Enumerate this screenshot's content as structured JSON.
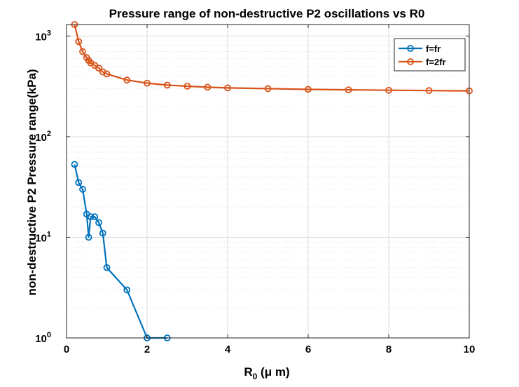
{
  "chart_data": {
    "type": "line",
    "title": "Pressure range of non-destructive P2 oscillations vs R0",
    "xlabel": {
      "main": "R",
      "sub": "0",
      "rest": " (μ m)"
    },
    "ylabel": "non-destructive P2 Pressure range(kPa)",
    "xlim": [
      0,
      10
    ],
    "ylim": [
      1,
      1300
    ],
    "yscale": "log",
    "grid": true,
    "minor_grid": true,
    "legend_position": "top-right",
    "x_ticks": [
      "0",
      "2",
      "4",
      "6",
      "8",
      "10"
    ],
    "x_tick_values": [
      0,
      2,
      4,
      6,
      8,
      10
    ],
    "y_ticks": [
      {
        "base": "10",
        "exp": "0",
        "value": 1
      },
      {
        "base": "10",
        "exp": "1",
        "value": 10
      },
      {
        "base": "10",
        "exp": "2",
        "value": 100
      },
      {
        "base": "10",
        "exp": "3",
        "value": 1000
      }
    ],
    "series": [
      {
        "name": "f=fr",
        "color": "#0072BD",
        "x": [
          0.2,
          0.3,
          0.4,
          0.5,
          0.55,
          0.6,
          0.7,
          0.8,
          0.9,
          1.0,
          1.5,
          2.0,
          2.5
        ],
        "y": [
          53,
          35,
          30,
          17,
          10,
          16,
          16,
          14,
          11,
          5,
          3,
          1,
          1
        ]
      },
      {
        "name": "f=2fr",
        "color": "#D95319",
        "x": [
          0.2,
          0.3,
          0.4,
          0.5,
          0.55,
          0.6,
          0.7,
          0.8,
          0.9,
          1.0,
          1.5,
          2.0,
          2.5,
          3.0,
          3.5,
          4.0,
          5.0,
          6.0,
          7.0,
          8.0,
          9.0,
          10.0
        ],
        "y": [
          1300,
          880,
          700,
          610,
          570,
          540,
          510,
          480,
          440,
          420,
          365,
          340,
          325,
          317,
          310,
          305,
          300,
          295,
          292,
          289,
          287,
          285
        ]
      }
    ]
  }
}
